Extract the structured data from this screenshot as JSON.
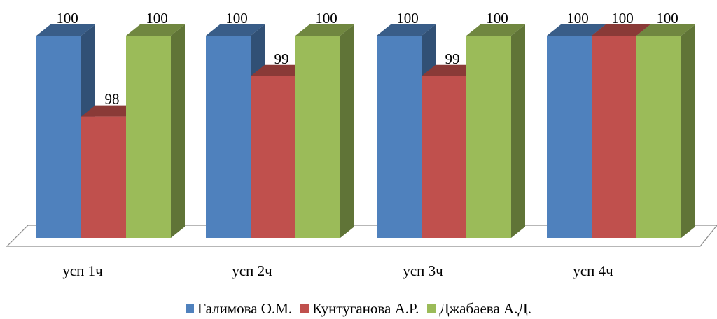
{
  "chart_data": {
    "type": "bar",
    "categories": [
      "усп 1ч",
      "усп 2ч",
      "усп 3ч",
      "усп 4ч"
    ],
    "series": [
      {
        "name": "Галимова О.М.",
        "values": [
          100,
          100,
          100,
          100
        ],
        "color": "#4F81BD"
      },
      {
        "name": "Кунтуганова А.Р.",
        "values": [
          98,
          99,
          99,
          100
        ],
        "color": "#C0504D"
      },
      {
        "name": "Джабаева А.Д.",
        "values": [
          100,
          100,
          100,
          100
        ],
        "color": "#9BBB59"
      }
    ],
    "title": "",
    "xlabel": "",
    "ylabel": "",
    "ylim": [
      95,
      100
    ],
    "grid": false,
    "legend": "bottom",
    "three_d": true
  }
}
